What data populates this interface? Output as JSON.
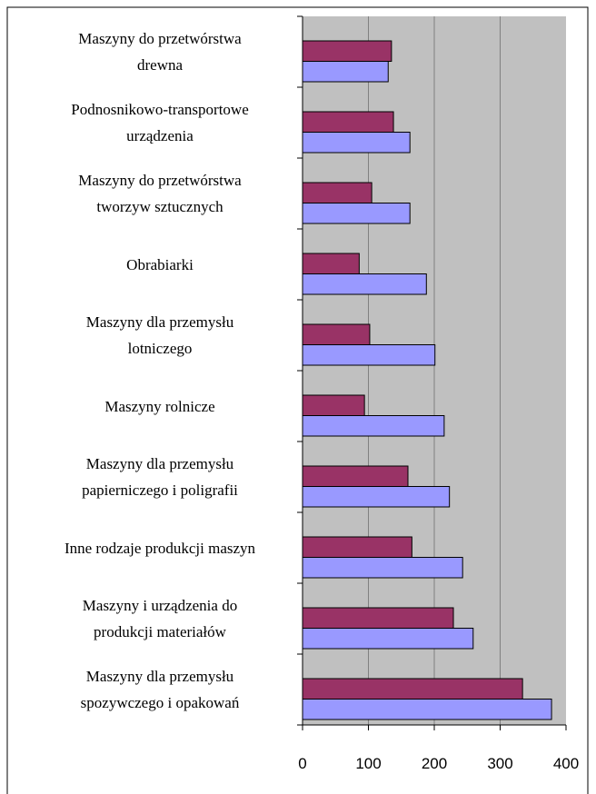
{
  "chart_data": {
    "type": "hbar",
    "categories": [
      "Maszyny do przetwórstwa\ndrewna",
      "Podnosnikowo-transportowe\nurządzenia",
      "Maszyny do przetwórstwa\ntworzyw sztucznych",
      "Obrabiarki",
      "Maszyny dla przemysłu\nlotniczego",
      "Maszyny rolnicze",
      "Maszyny dla przemysłu\npapierniczego i poligrafii",
      "Inne rodzaje produkcji maszyn",
      "Maszyny i urządzenia do\nprodukcji materiałów",
      "Maszyny dla przemysłu\nspozywczego i opakowań"
    ],
    "series": [
      {
        "color": "#993366",
        "values": [
          135,
          138,
          105,
          86,
          102,
          94,
          160,
          166,
          229,
          334
        ]
      },
      {
        "color": "#9999ff",
        "values": [
          130,
          163,
          163,
          188,
          201,
          215,
          223,
          243,
          259,
          378
        ]
      }
    ],
    "xlim": [
      0,
      400
    ],
    "xticks": [
      0,
      100,
      200,
      300,
      400
    ],
    "grid": true
  }
}
